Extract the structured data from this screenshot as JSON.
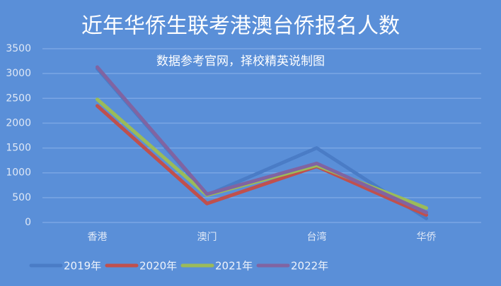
{
  "chart_data": {
    "type": "line",
    "title": "近年华侨生联考港澳台侨报名人数",
    "annotation": "数据参考官网，择校精英说制图",
    "categories": [
      "香港",
      "澳门",
      "台湾",
      "华侨"
    ],
    "series": [
      {
        "name": "2019年",
        "color": "#4a7cc6",
        "values": [
          3100,
          550,
          1500,
          80
        ]
      },
      {
        "name": "2020年",
        "color": "#c0504d",
        "values": [
          2350,
          380,
          1130,
          150
        ]
      },
      {
        "name": "2021年",
        "color": "#9bbb59",
        "values": [
          2480,
          550,
          1150,
          290
        ]
      },
      {
        "name": "2022年",
        "color": "#8064a2",
        "values": [
          3130,
          570,
          1190,
          200
        ]
      }
    ],
    "ylim": [
      0,
      3500
    ],
    "yticks": [
      0,
      500,
      1000,
      1500,
      2000,
      2500,
      3000,
      3500
    ],
    "grid": true,
    "legend": "bottom"
  }
}
